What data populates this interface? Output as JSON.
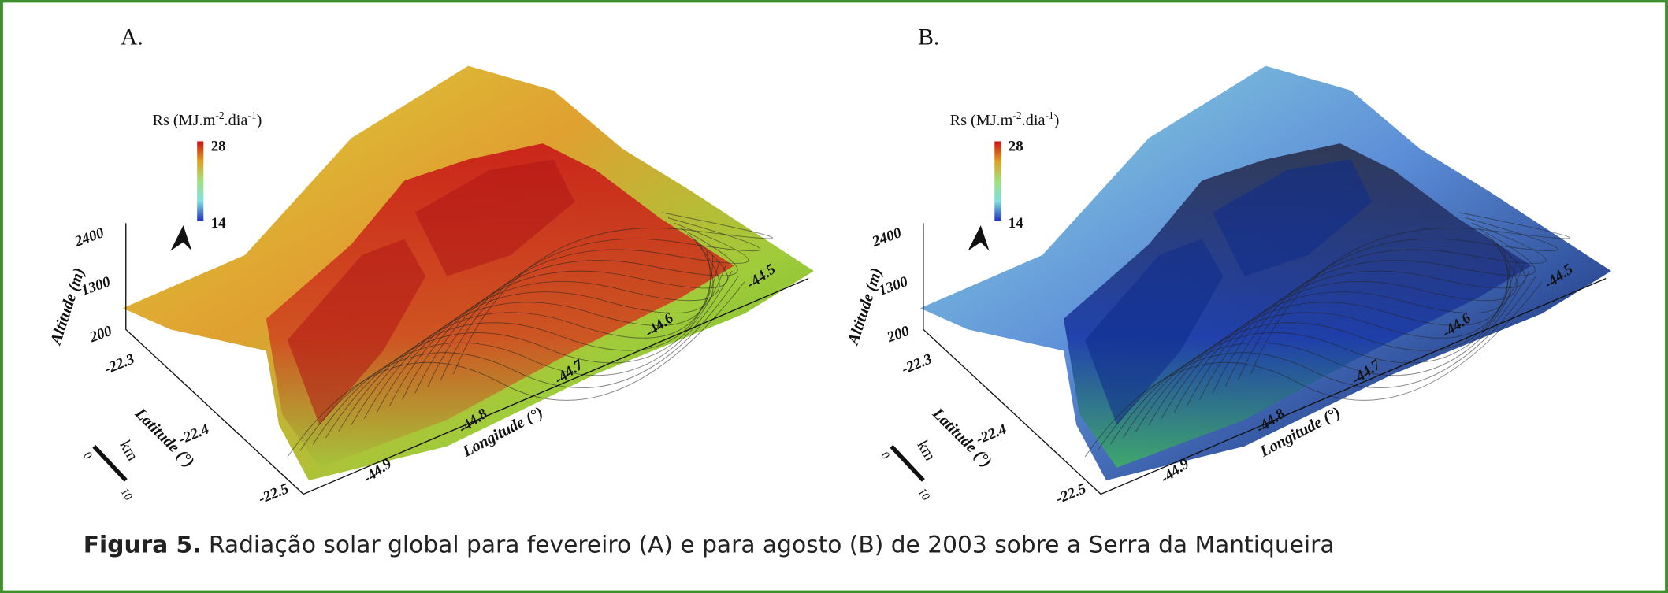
{
  "panels": [
    {
      "label": "A.",
      "legend": {
        "title": [
          "Rs (MJ.m",
          "-2",
          ".dia",
          "-1",
          ")"
        ],
        "max": "28",
        "min": "14"
      },
      "altitude": {
        "label": "Altitude (m)",
        "ticks": [
          "2400",
          "1300",
          "200"
        ]
      },
      "latitude": {
        "label": "Latitude (°)",
        "ticks": [
          "-22.3",
          "-22.4",
          "-22.5"
        ]
      },
      "longitude": {
        "label": "Longitude (°)",
        "ticks": [
          "-44.9",
          "-44.8",
          "-44.7",
          "-44.6",
          "-44.5"
        ]
      },
      "scale_bar": {
        "unit": "km",
        "ticks": [
          "0",
          "10"
        ]
      }
    },
    {
      "label": "B.",
      "legend": {
        "title": [
          "Rs (MJ.m",
          "-2",
          ".dia",
          "-1",
          ")"
        ],
        "max": "28",
        "min": "14"
      },
      "altitude": {
        "label": "Altitude (m)",
        "ticks": [
          "2400",
          "1300",
          "200"
        ]
      },
      "latitude": {
        "label": "Latitude (°)",
        "ticks": [
          "-22.3",
          "-22.4",
          "-22.5"
        ]
      },
      "longitude": {
        "label": "Longitude (°)",
        "ticks": [
          "-44.9",
          "-44.8",
          "-44.7",
          "-44.6",
          "-44.5"
        ]
      },
      "scale_bar": {
        "unit": "km",
        "ticks": [
          "0",
          "10"
        ]
      }
    }
  ],
  "caption": {
    "label": "Figura 5.",
    "text": " Radiação solar global para fevereiro (A) e para agosto (B) de 2003 sobre a Serra da Mantiqueira"
  }
}
